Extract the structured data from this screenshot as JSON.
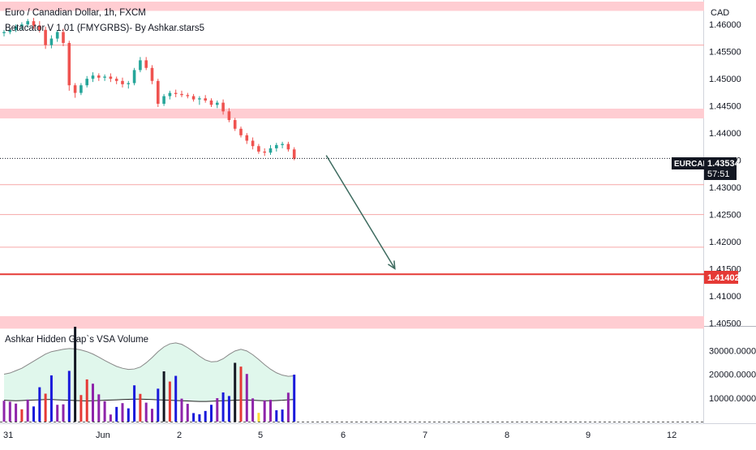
{
  "header": {
    "symbol_title": "Euro / Canadian Dollar, 1h, FXCM",
    "indicator_title": "Betacator V 1.01 (FMYGRBS)- By Ashkar.stars5"
  },
  "volume_pane": {
    "title": "Ashkar Hidden Gap`s VSA Volume"
  },
  "colors": {
    "up_candle": "#26a69a",
    "down_candle": "#ef5350",
    "zone": "#ffcdd2",
    "zone_line": "#f6a7a7",
    "target_line": "#e53935",
    "arrow": "#3d6b5f",
    "vol_blue": "#1a1adb",
    "vol_purple": "#8e24aa",
    "vol_red": "#e53935",
    "vol_yellow": "#fdd835",
    "vol_black": "#131722",
    "envelope_fill": "#e0f7ec",
    "envelope_line": "#555555"
  },
  "price_scale": {
    "currency": "CAD",
    "ticks": [
      "1.46000",
      "1.45500",
      "1.45000",
      "1.44500",
      "1.44000",
      "1.43500",
      "1.43000",
      "1.42500",
      "1.42000",
      "1.41500",
      "1.41000",
      "1.40500"
    ],
    "current_symbol": "EURCAD",
    "current_price": "1.43534",
    "countdown": "57:51",
    "target_price": "1.41402"
  },
  "volume_scale": {
    "ticks": [
      "30000.00000",
      "20000.00000",
      "10000.00000"
    ]
  },
  "time_axis": {
    "labels": [
      "31",
      "Jun",
      "2",
      "5",
      "6",
      "7",
      "8",
      "9",
      "12"
    ]
  },
  "chart_data": {
    "type": "candlestick",
    "title": "Euro / Canadian Dollar, 1h, FXCM",
    "yrange": [
      1.4045,
      1.4645
    ],
    "zones": [
      {
        "from": 1.4625,
        "to": 1.4642
      },
      {
        "from": 1.4427,
        "to": 1.4445
      },
      {
        "from": 1.404,
        "to": 1.4063
      }
    ],
    "thin_lines": [
      1.4562,
      1.4305,
      1.425,
      1.419
    ],
    "horizontal_levels": [
      1.43534,
      1.41402
    ],
    "projection_arrow": {
      "from": [
        54,
        1.4353
      ],
      "to": [
        66,
        1.4143
      ]
    },
    "candles": [
      [
        1.4584,
        1.459,
        1.4578,
        1.4586
      ],
      [
        1.4586,
        1.4594,
        1.4582,
        1.459
      ],
      [
        1.459,
        1.46,
        1.4586,
        1.4596
      ],
      [
        1.4596,
        1.4604,
        1.459,
        1.46
      ],
      [
        1.46,
        1.461,
        1.4594,
        1.4606
      ],
      [
        1.4606,
        1.4612,
        1.4592,
        1.4598
      ],
      [
        1.4598,
        1.4606,
        1.4585,
        1.459
      ],
      [
        1.459,
        1.4596,
        1.4555,
        1.4562
      ],
      [
        1.4562,
        1.458,
        1.4556,
        1.4574
      ],
      [
        1.4574,
        1.459,
        1.4568,
        1.4586
      ],
      [
        1.4586,
        1.4592,
        1.456,
        1.4566
      ],
      [
        1.4566,
        1.457,
        1.4478,
        1.4488
      ],
      [
        1.4488,
        1.4492,
        1.4465,
        1.4474
      ],
      [
        1.4474,
        1.4492,
        1.447,
        1.4488
      ],
      [
        1.4488,
        1.4505,
        1.4484,
        1.45
      ],
      [
        1.45,
        1.4512,
        1.4494,
        1.4506
      ],
      [
        1.4506,
        1.451,
        1.4496,
        1.4502
      ],
      [
        1.4502,
        1.4508,
        1.4496,
        1.4504
      ],
      [
        1.4504,
        1.451,
        1.4494,
        1.45
      ],
      [
        1.45,
        1.4504,
        1.449,
        1.4496
      ],
      [
        1.4496,
        1.4502,
        1.4484,
        1.449
      ],
      [
        1.449,
        1.4496,
        1.4482,
        1.4492
      ],
      [
        1.4492,
        1.452,
        1.4488,
        1.4516
      ],
      [
        1.4516,
        1.454,
        1.4512,
        1.4534
      ],
      [
        1.4534,
        1.454,
        1.4516,
        1.452
      ],
      [
        1.452,
        1.4525,
        1.449,
        1.4496
      ],
      [
        1.4496,
        1.45,
        1.4448,
        1.4454
      ],
      [
        1.4454,
        1.4472,
        1.445,
        1.4468
      ],
      [
        1.4468,
        1.4478,
        1.4462,
        1.4474
      ],
      [
        1.4474,
        1.448,
        1.4466,
        1.4472
      ],
      [
        1.4472,
        1.4478,
        1.4466,
        1.447
      ],
      [
        1.447,
        1.4474,
        1.4464,
        1.4468
      ],
      [
        1.4468,
        1.4472,
        1.4458,
        1.4462
      ],
      [
        1.4462,
        1.4468,
        1.4452,
        1.4464
      ],
      [
        1.4464,
        1.447,
        1.4456,
        1.446
      ],
      [
        1.446,
        1.4464,
        1.4448,
        1.4452
      ],
      [
        1.4452,
        1.446,
        1.4446,
        1.4456
      ],
      [
        1.4456,
        1.4462,
        1.4434,
        1.444
      ],
      [
        1.444,
        1.4446,
        1.442,
        1.4424
      ],
      [
        1.4424,
        1.4428,
        1.4404,
        1.4408
      ],
      [
        1.4408,
        1.4412,
        1.4392,
        1.4396
      ],
      [
        1.4396,
        1.44,
        1.438,
        1.4386
      ],
      [
        1.4386,
        1.4392,
        1.437,
        1.4376
      ],
      [
        1.4376,
        1.438,
        1.4362,
        1.4366
      ],
      [
        1.4366,
        1.4372,
        1.4358,
        1.4364
      ],
      [
        1.4364,
        1.4378,
        1.436,
        1.4372
      ],
      [
        1.4372,
        1.4382,
        1.4366,
        1.4378
      ],
      [
        1.4378,
        1.4384,
        1.4372,
        1.438
      ],
      [
        1.438,
        1.4384,
        1.4366,
        1.437
      ],
      [
        1.437,
        1.4374,
        1.435,
        1.4353
      ]
    ],
    "volume_bars": [
      [
        8800,
        "purple"
      ],
      [
        8400,
        "purple"
      ],
      [
        7600,
        "purple"
      ],
      [
        5200,
        "red"
      ],
      [
        9300,
        "purple"
      ],
      [
        6400,
        "blue"
      ],
      [
        14500,
        "blue"
      ],
      [
        11800,
        "red"
      ],
      [
        19500,
        "blue"
      ],
      [
        7100,
        "purple"
      ],
      [
        7300,
        "purple"
      ],
      [
        21400,
        "blue"
      ],
      [
        40200,
        "black"
      ],
      [
        11200,
        "red"
      ],
      [
        17800,
        "red"
      ],
      [
        16000,
        "purple"
      ],
      [
        11500,
        "purple"
      ],
      [
        8600,
        "purple"
      ],
      [
        3000,
        "purple"
      ],
      [
        6200,
        "blue"
      ],
      [
        7800,
        "purple"
      ],
      [
        5600,
        "blue"
      ],
      [
        15300,
        "blue"
      ],
      [
        11700,
        "red"
      ],
      [
        8000,
        "purple"
      ],
      [
        5400,
        "purple"
      ],
      [
        13900,
        "blue"
      ],
      [
        21200,
        "black"
      ],
      [
        16900,
        "red"
      ],
      [
        19300,
        "blue"
      ],
      [
        9700,
        "purple"
      ],
      [
        7500,
        "purple"
      ],
      [
        3600,
        "blue"
      ],
      [
        3100,
        "blue"
      ],
      [
        4500,
        "blue"
      ],
      [
        7100,
        "blue"
      ],
      [
        9900,
        "purple"
      ],
      [
        12300,
        "blue"
      ],
      [
        10800,
        "blue"
      ],
      [
        24800,
        "black"
      ],
      [
        23200,
        "red"
      ],
      [
        20100,
        "purple"
      ],
      [
        9800,
        "purple"
      ],
      [
        3700,
        "yellow"
      ],
      [
        8900,
        "purple"
      ],
      [
        9200,
        "purple"
      ],
      [
        4800,
        "blue"
      ],
      [
        5100,
        "blue"
      ],
      [
        12200,
        "purple"
      ],
      [
        19800,
        "blue"
      ]
    ],
    "volume_envelope_upper": [
      20000,
      20500,
      21500,
      22500,
      24000,
      25500,
      27000,
      28500,
      29500,
      30000,
      30500,
      30800,
      30700,
      30200,
      29500,
      28500,
      27200,
      25800,
      24500,
      23300,
      22500,
      22000,
      22200,
      23000,
      24800,
      27000,
      29500,
      31500,
      32800,
      33200,
      32600,
      31200,
      29500,
      27600,
      26000,
      25200,
      25400,
      26500,
      28300,
      29800,
      30500,
      29800,
      28200,
      26200,
      24000,
      22100,
      20600,
      19600,
      19100,
      19300
    ],
    "volume_envelope_lower": [
      9000,
      8900,
      8800,
      8900,
      9000,
      9100,
      9200,
      9300,
      9300,
      9200,
      9100,
      9000,
      8900,
      8800,
      8700,
      8800,
      8900,
      9000,
      9100,
      9200,
      9300,
      9400,
      9500,
      9500,
      9400,
      9300,
      9200,
      9100,
      9000,
      8900,
      8800,
      8700,
      8600,
      8500,
      8500,
      8600,
      8700,
      8800,
      8900,
      9000,
      9100,
      9100,
      9000,
      8900,
      8800,
      8800,
      8900,
      9000,
      9200,
      9300
    ],
    "volume_yrange": [
      0,
      40000
    ]
  }
}
